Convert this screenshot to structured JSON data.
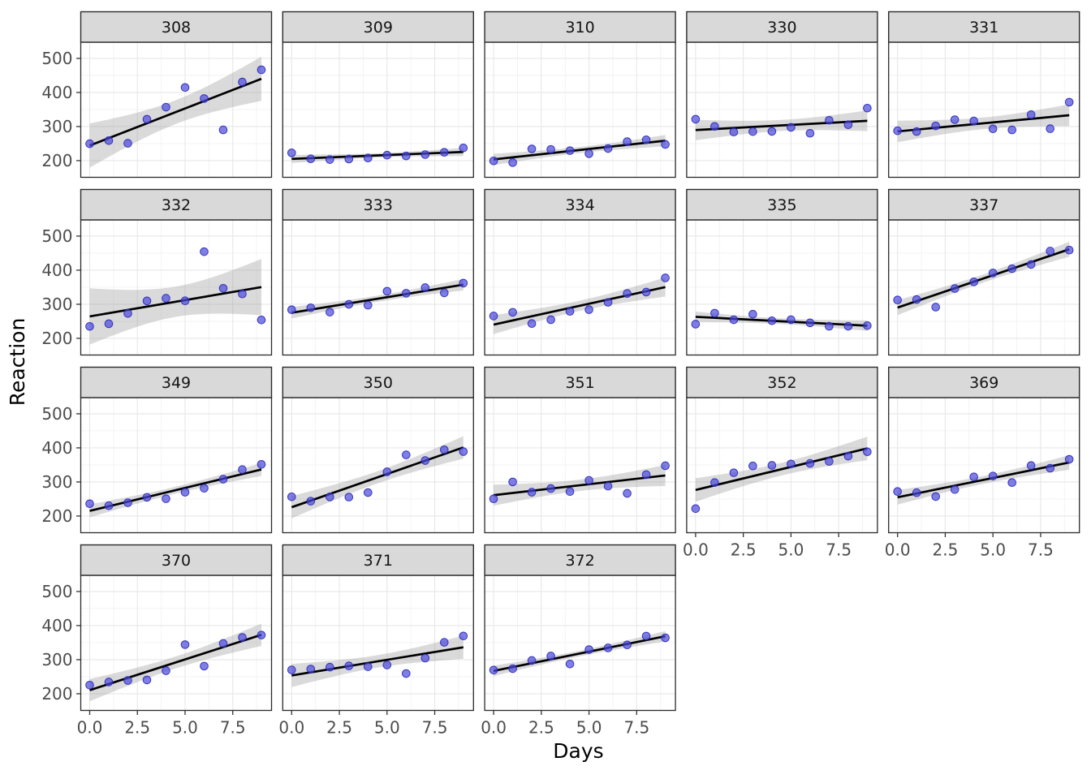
{
  "chart_data": {
    "type": "scatter",
    "title": "",
    "xlabel": "Days",
    "ylabel": "Reaction",
    "facet_by": "Subject",
    "smooth": "linear regression with 95% confidence ribbon per facet",
    "x": [
      0,
      1,
      2,
      3,
      4,
      5,
      6,
      7,
      8,
      9
    ],
    "xlim": [
      -0.468,
      9.532
    ],
    "ylim": [
      151,
      547.5
    ],
    "x_ticks": [
      0,
      2.5,
      5,
      7.5
    ],
    "x_tick_labels": [
      "0.0",
      "2.5",
      "5.0",
      "7.5"
    ],
    "x_minor": [
      1.25,
      3.75,
      6.25,
      8.75
    ],
    "y_ticks": [
      200,
      300,
      400,
      500
    ],
    "y_tick_labels": [
      "200",
      "300",
      "400",
      "500"
    ],
    "y_minor": [
      250,
      350,
      450
    ],
    "grid": true,
    "legend": "none",
    "facets": [
      {
        "subject": "308",
        "reaction": [
          249.6,
          258.7,
          250.8,
          321.4,
          356.9,
          414.7,
          382.2,
          290.1,
          430.6,
          466.4
        ]
      },
      {
        "subject": "309",
        "reaction": [
          222.7,
          205.3,
          203.0,
          204.7,
          207.7,
          216.0,
          213.6,
          217.7,
          224.3,
          237.3
        ]
      },
      {
        "subject": "310",
        "reaction": [
          199.1,
          194.3,
          234.3,
          232.8,
          229.3,
          220.5,
          235.4,
          255.8,
          261.0,
          247.5
        ]
      },
      {
        "subject": "330",
        "reaction": [
          321.5,
          300.4,
          283.9,
          285.1,
          285.8,
          297.6,
          280.2,
          318.3,
          305.3,
          354.0
        ]
      },
      {
        "subject": "331",
        "reaction": [
          287.6,
          285.0,
          301.8,
          320.1,
          316.3,
          293.3,
          290.1,
          334.8,
          293.7,
          371.6
        ]
      },
      {
        "subject": "332",
        "reaction": [
          234.9,
          242.8,
          273.0,
          309.8,
          317.5,
          310.0,
          454.2,
          346.8,
          330.3,
          253.9
        ]
      },
      {
        "subject": "333",
        "reaction": [
          283.8,
          289.6,
          276.8,
          299.8,
          297.2,
          338.2,
          332.3,
          348.8,
          333.4,
          362.0
        ]
      },
      {
        "subject": "334",
        "reaction": [
          265.5,
          276.2,
          243.4,
          254.7,
          279.0,
          284.2,
          305.5,
          331.5,
          335.7,
          377.3
        ]
      },
      {
        "subject": "335",
        "reaction": [
          241.6,
          273.9,
          254.5,
          270.8,
          251.5,
          254.6,
          245.5,
          235.3,
          235.5,
          237.2
        ]
      },
      {
        "subject": "337",
        "reaction": [
          312.4,
          313.8,
          291.6,
          346.1,
          365.7,
          391.8,
          404.3,
          416.7,
          455.9,
          458.9
        ]
      },
      {
        "subject": "349",
        "reaction": [
          236.1,
          230.3,
          238.9,
          254.9,
          250.7,
          269.8,
          281.6,
          308.1,
          336.3,
          351.6
        ]
      },
      {
        "subject": "350",
        "reaction": [
          256.3,
          243.5,
          256.2,
          255.5,
          268.9,
          329.7,
          379.4,
          362.9,
          394.5,
          389.1
        ]
      },
      {
        "subject": "351",
        "reaction": [
          250.5,
          300.1,
          269.9,
          280.6,
          271.8,
          304.6,
          287.7,
          266.6,
          321.5,
          347.6
        ]
      },
      {
        "subject": "352",
        "reaction": [
          221.7,
          298.2,
          326.9,
          346.9,
          348.7,
          352.8,
          354.4,
          360.4,
          375.6,
          388.5
        ]
      },
      {
        "subject": "369",
        "reaction": [
          271.9,
          268.4,
          257.2,
          277.7,
          314.8,
          317.3,
          298.1,
          348.1,
          340.3,
          366.5
        ]
      },
      {
        "subject": "370",
        "reaction": [
          225.3,
          234.5,
          238.9,
          240.5,
          267.5,
          344.2,
          281.1,
          347.6,
          365.2,
          372.2
        ]
      },
      {
        "subject": "371",
        "reaction": [
          269.9,
          272.4,
          277.9,
          281.8,
          279.2,
          284.5,
          259.3,
          304.6,
          350.8,
          369.5
        ]
      },
      {
        "subject": "372",
        "reaction": [
          269.4,
          273.5,
          297.6,
          310.6,
          287.2,
          329.6,
          334.5,
          343.2,
          369.1,
          364.1
        ]
      }
    ],
    "style": {
      "point_color": "#4a49db",
      "point_stroke": "#2726b8",
      "line_color": "#000000",
      "ribbon_color": "#969696",
      "strip_fill": "#d9d9d9",
      "strip_border": "#2a2a2a",
      "panel_fill": "#ffffff",
      "panel_border": "#2a2a2a",
      "grid_major": "#e7e7e7",
      "grid_minor": "#f2f2f2",
      "tick_color": "#333333",
      "tick_label_color": "#4d4d4d",
      "strip_text_color": "#141414",
      "axis_title_color": "#000000"
    }
  }
}
